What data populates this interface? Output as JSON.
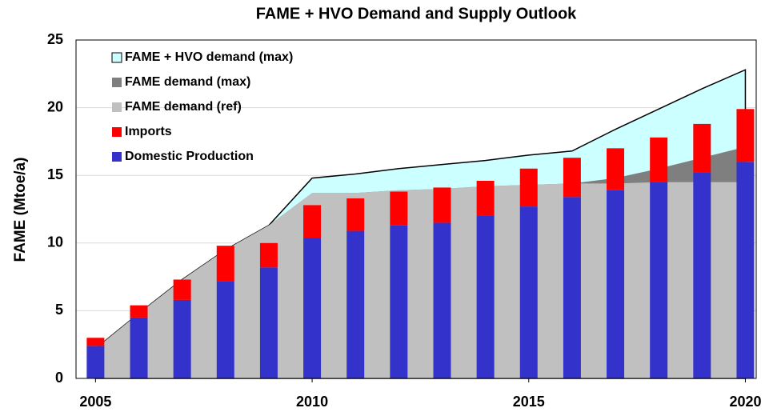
{
  "chart_data": {
    "type": "bar",
    "title": "FAME + HVO Demand and Supply Outlook",
    "y_label": "FAME (Mtoe/a)",
    "x": [
      2005,
      2006,
      2007,
      2008,
      2009,
      2010,
      2011,
      2012,
      2013,
      2014,
      2015,
      2016,
      2017,
      2018,
      2019,
      2020
    ],
    "xlim": [
      2004.55,
      2020.25
    ],
    "xticks": [
      2005,
      2010,
      2015,
      2020
    ],
    "ylim": [
      0,
      25
    ],
    "yticks": [
      0,
      5,
      10,
      15,
      20,
      25
    ],
    "grid": true,
    "legend": "upper left",
    "series": [
      {
        "name": "FAME + HVO demand (max)",
        "type": "area",
        "color": "#ccffff",
        "values": [
          2.2,
          4.8,
          7.3,
          9.5,
          11.3,
          14.8,
          15.1,
          15.5,
          15.8,
          16.1,
          16.5,
          16.8,
          18.4,
          19.9,
          21.4,
          22.8
        ]
      },
      {
        "name": "FAME demand (max)",
        "type": "area",
        "color": "#7f7f7f",
        "values": [
          2.2,
          4.8,
          7.3,
          9.5,
          11.3,
          13.7,
          13.7,
          13.9,
          14.0,
          14.2,
          14.3,
          14.4,
          14.8,
          15.5,
          16.3,
          17.1
        ]
      },
      {
        "name": "FAME demand (ref)",
        "type": "area",
        "color": "#c0c0c0",
        "values": [
          2.2,
          4.8,
          7.3,
          9.5,
          11.3,
          13.7,
          13.7,
          13.9,
          14.0,
          14.2,
          14.3,
          14.4,
          14.4,
          14.5,
          14.5,
          14.5
        ]
      },
      {
        "name": "Imports",
        "type": "bar",
        "color": "#ff0000",
        "values": [
          0.6,
          0.9,
          1.5,
          2.6,
          1.8,
          2.4,
          2.4,
          2.5,
          2.6,
          2.6,
          2.8,
          2.9,
          3.1,
          3.3,
          3.6,
          3.9
        ]
      },
      {
        "name": "Domestic Production",
        "type": "bar",
        "color": "#3333cc",
        "values": [
          2.4,
          4.5,
          5.8,
          7.2,
          8.2,
          10.4,
          10.9,
          11.3,
          11.5,
          12.0,
          12.7,
          13.4,
          13.9,
          14.5,
          15.2,
          16.0
        ]
      }
    ]
  }
}
